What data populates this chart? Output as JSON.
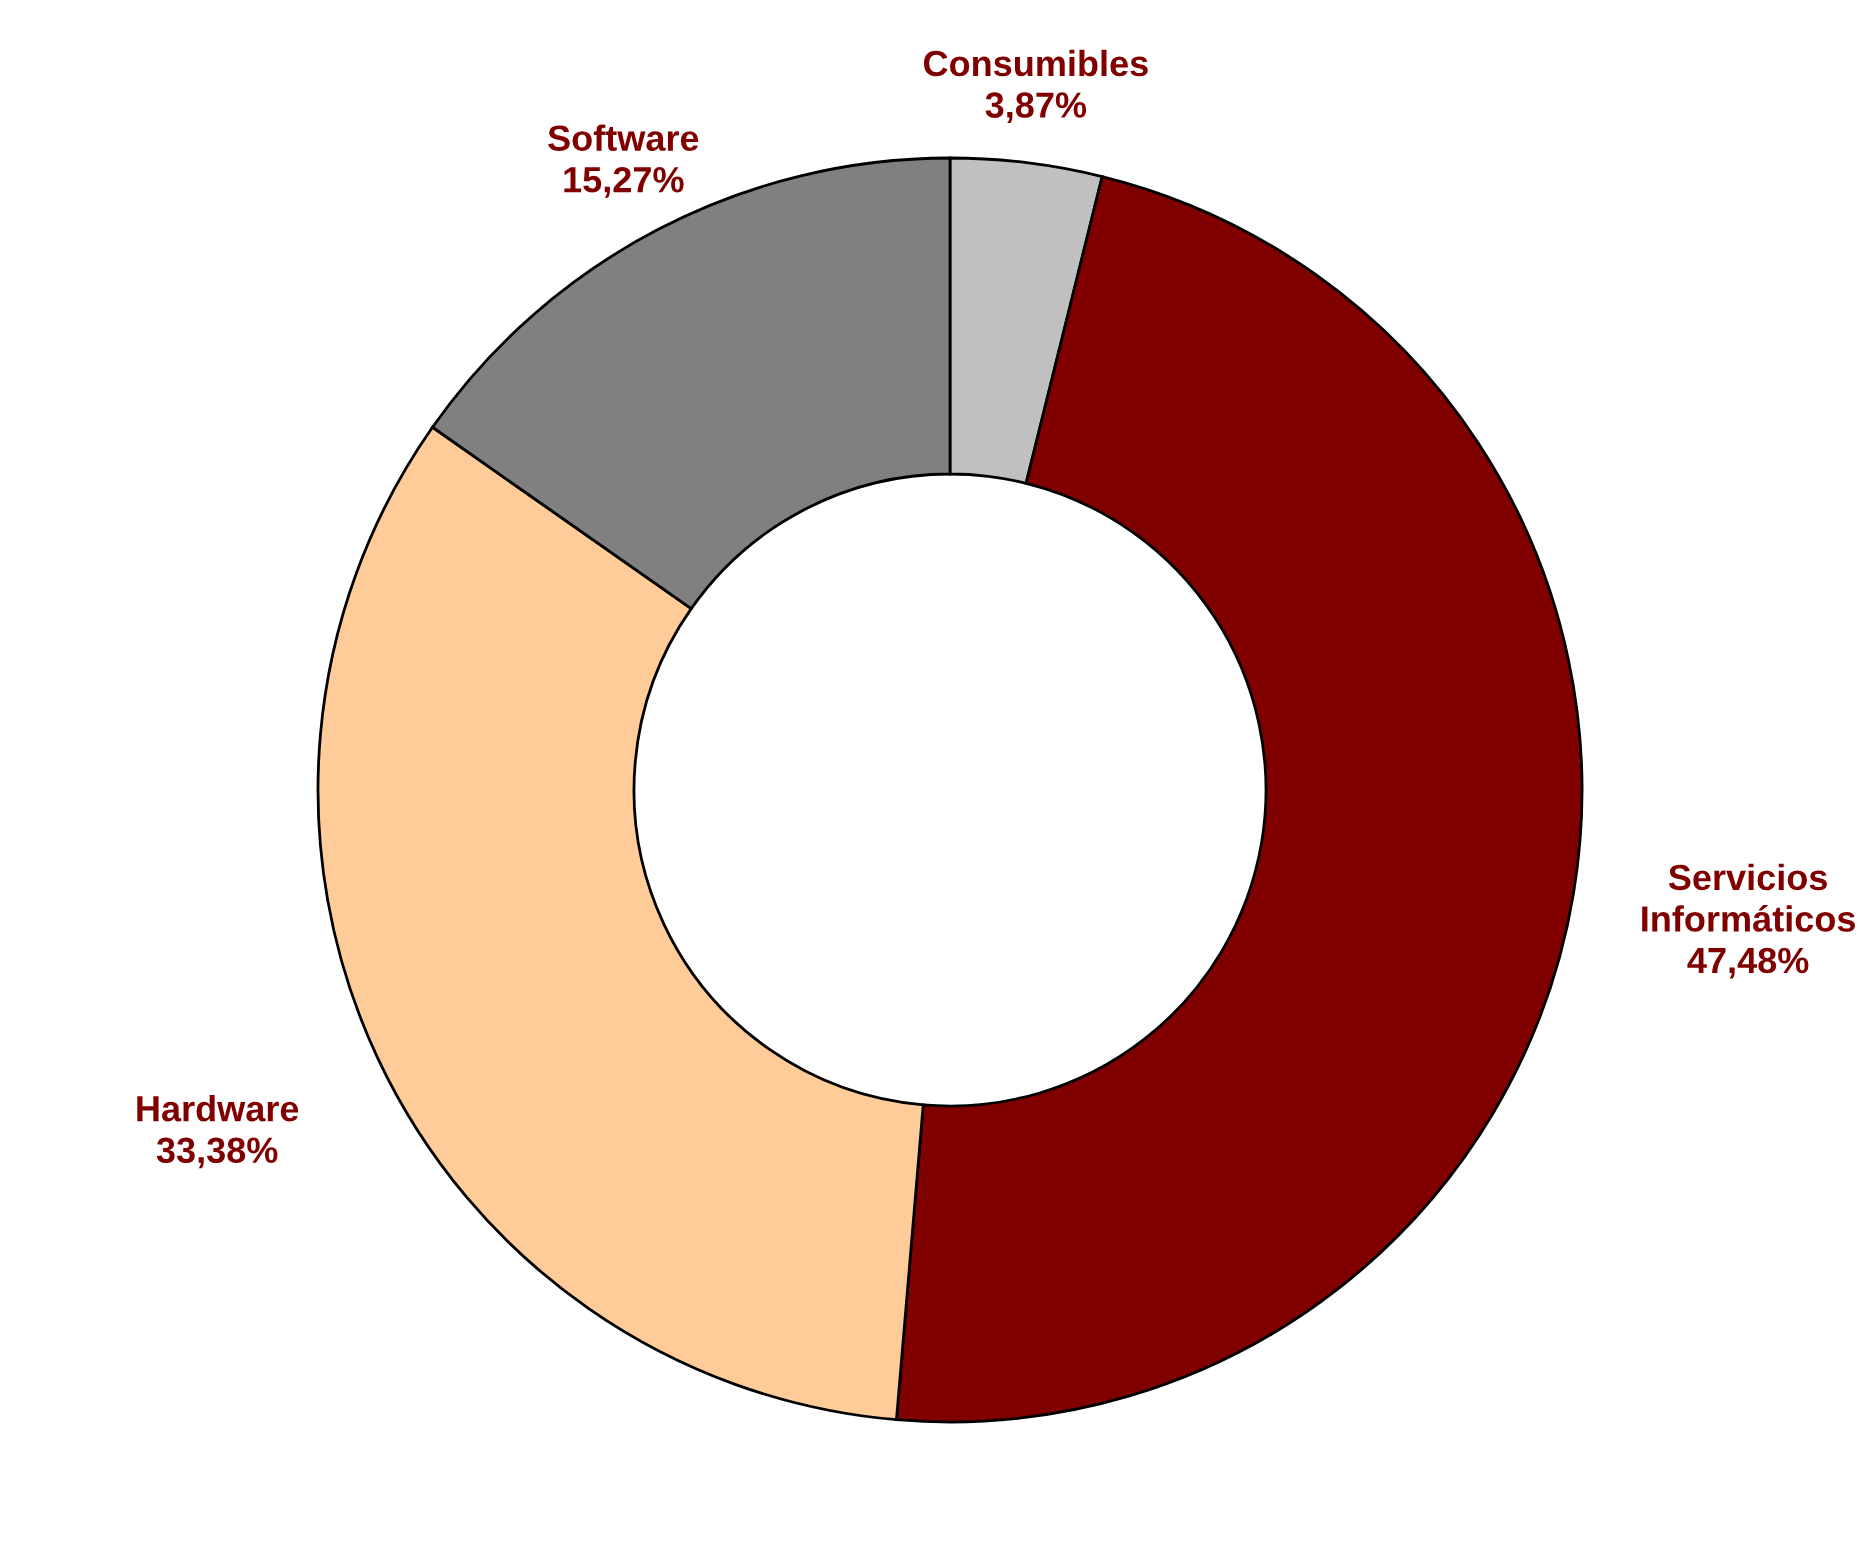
{
  "chart_data": {
    "type": "donut",
    "categories": [
      "Consumibles",
      "Servicios\nInformáticos",
      "Hardware",
      "Software"
    ],
    "values": [
      3.87,
      47.48,
      33.38,
      15.27
    ],
    "value_labels": [
      "3,87%",
      "47,48%",
      "33,38%",
      "15,27%"
    ],
    "colors": [
      "#c0c0c0",
      "#800000",
      "#ffcc99",
      "#808080"
    ]
  }
}
